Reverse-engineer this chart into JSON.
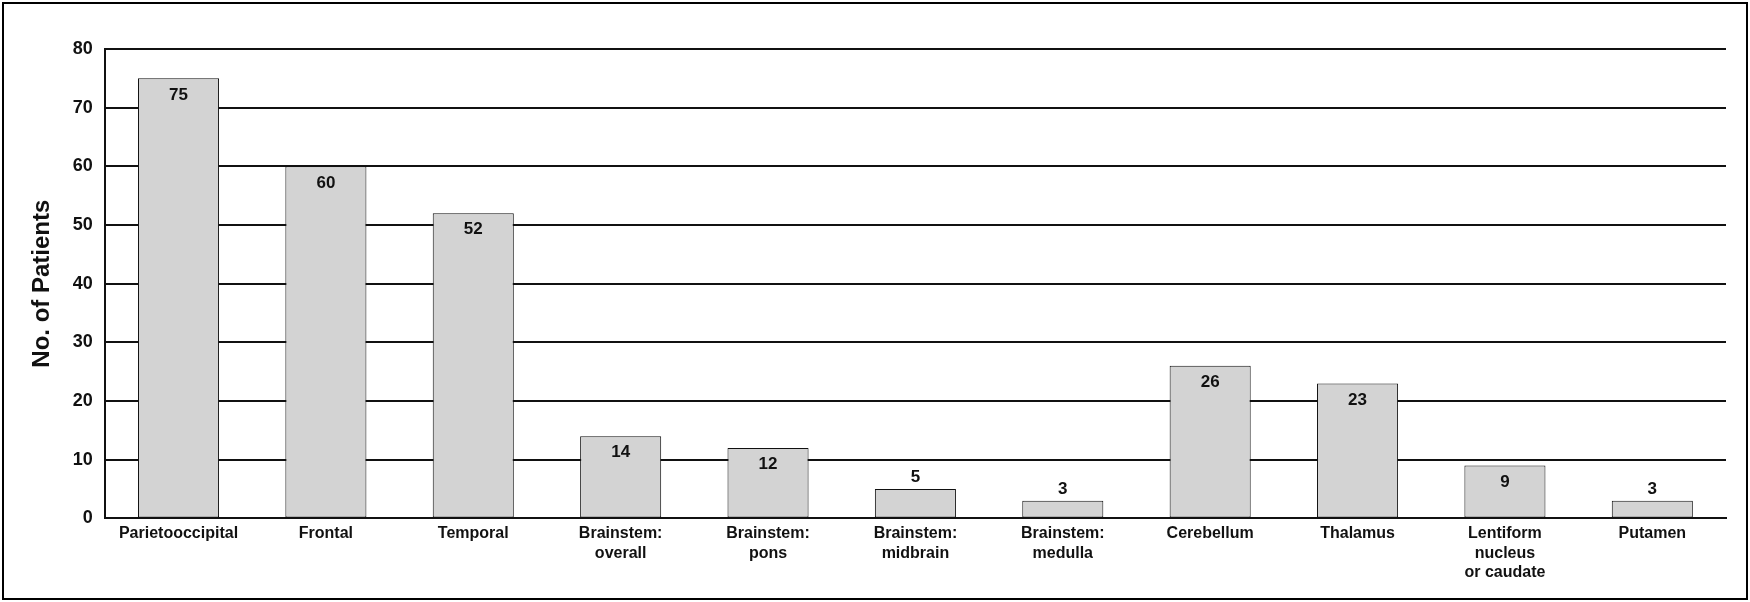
{
  "chart_data": {
    "type": "bar",
    "ylabel": "No. of Patients",
    "categories": [
      "Parietooccipital",
      "Frontal",
      "Temporal",
      "Brainstem:\noverall",
      "Brainstem:\npons",
      "Brainstem:\nmidbrain",
      "Brainstem:\nmedulla",
      "Cerebellum",
      "Thalamus",
      "Lentiform\nnucleus\nor caudate",
      "Putamen"
    ],
    "values": [
      75,
      60,
      52,
      14,
      12,
      5,
      3,
      26,
      23,
      9,
      3
    ],
    "color": "#d3d3d3",
    "ylim": [
      0,
      80
    ],
    "yticks": [
      0,
      10,
      20,
      30,
      40,
      50,
      60,
      70,
      80
    ],
    "grid": "y",
    "data_labels": true,
    "legend": false
  }
}
